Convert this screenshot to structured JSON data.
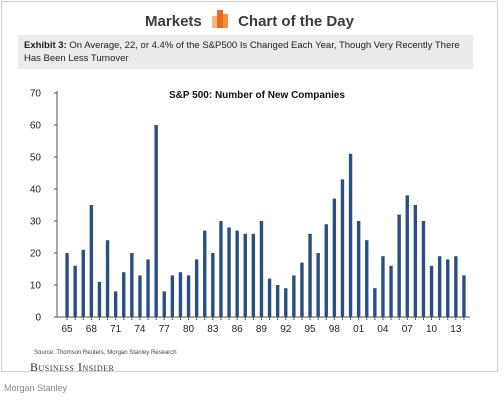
{
  "header": {
    "left": "Markets",
    "right": "Chart of the Day",
    "logo_colors": [
      "#f6b37a",
      "#e86a1f",
      "#f29143"
    ]
  },
  "exhibit": {
    "label": "Exhibit 3:",
    "text": "On Average, 22, or 4.4% of the S&P500 Is Changed Each Year, Though Very Recently There Has Been Less Turnover"
  },
  "source": "Source: Thomson Reuters, Morgan Stanley Research",
  "publisher": "Business Insider",
  "credit": "Morgan Stanley",
  "chart_data": {
    "type": "bar",
    "title": "S&P 500: Number of New Companies",
    "xlabel": "",
    "ylabel": "",
    "ylim": [
      0,
      70
    ],
    "yticks": [
      0,
      10,
      20,
      30,
      40,
      50,
      60,
      70
    ],
    "grid": false,
    "bar_color": "#2b4f7e",
    "categories": [
      "65",
      "66",
      "67",
      "68",
      "69",
      "70",
      "71",
      "72",
      "73",
      "74",
      "75",
      "76",
      "77",
      "78",
      "79",
      "80",
      "81",
      "82",
      "83",
      "84",
      "85",
      "86",
      "87",
      "88",
      "89",
      "90",
      "91",
      "92",
      "93",
      "94",
      "95",
      "96",
      "97",
      "98",
      "99",
      "00",
      "01",
      "02",
      "03",
      "04",
      "05",
      "06",
      "07",
      "08",
      "09",
      "10",
      "11",
      "12",
      "13",
      "14"
    ],
    "tick_labels": [
      "65",
      "68",
      "71",
      "74",
      "77",
      "80",
      "83",
      "86",
      "89",
      "92",
      "95",
      "98",
      "01",
      "04",
      "07",
      "10",
      "13"
    ],
    "values": [
      20,
      16,
      21,
      35,
      11,
      24,
      8,
      14,
      20,
      13,
      18,
      60,
      8,
      13,
      14,
      13,
      18,
      27,
      20,
      30,
      28,
      27,
      26,
      26,
      30,
      12,
      10,
      9,
      13,
      17,
      26,
      20,
      29,
      37,
      43,
      51,
      30,
      24,
      9,
      19,
      16,
      32,
      38,
      35,
      30,
      16,
      19,
      18,
      19,
      13
    ]
  }
}
